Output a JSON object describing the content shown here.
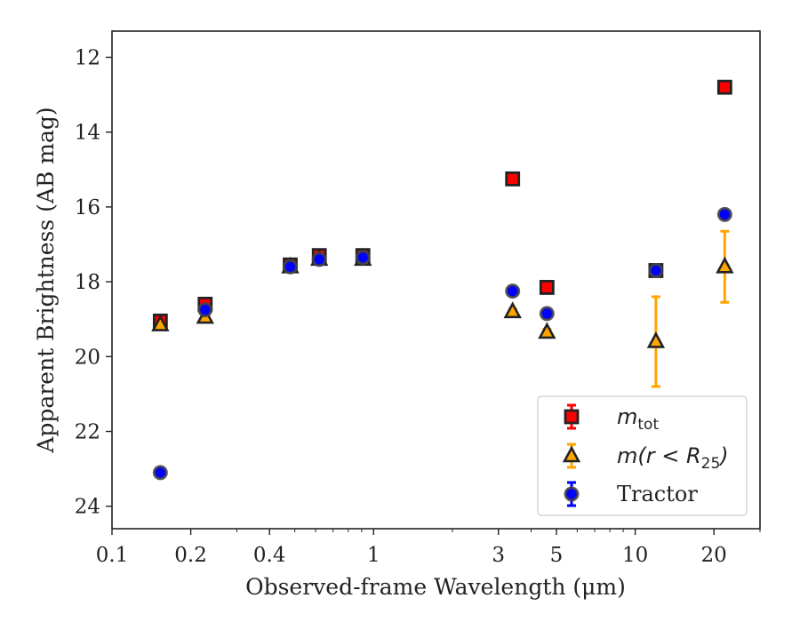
{
  "chart_data": {
    "type": "scatter",
    "xlabel": "Observed-frame Wavelength (μm)",
    "ylabel": "Apparent Brightness (AB mag)",
    "x_scale": "log",
    "xlim": [
      0.1,
      30
    ],
    "ylim": [
      24.6,
      11.3
    ],
    "y_inverted": true,
    "x_ticks": [
      0.1,
      0.2,
      0.4,
      1,
      3,
      5,
      10,
      20
    ],
    "x_tick_labels": [
      "0.1",
      "0.2",
      "0.4",
      "1",
      "3",
      "5",
      "10",
      "20"
    ],
    "y_ticks": [
      12,
      14,
      16,
      18,
      20,
      22,
      24
    ],
    "y_tick_labels": [
      "12",
      "14",
      "16",
      "18",
      "20",
      "22",
      "24"
    ],
    "legend_position": "lower-right",
    "series": [
      {
        "legend_math": "m",
        "legend_sub": "tot",
        "marker": "square",
        "color": "#ff0000",
        "edge": "#222222",
        "error_color": "#ff0000",
        "x": [
          0.153,
          0.227,
          0.48,
          0.62,
          0.91,
          3.4,
          4.6,
          12.0,
          22.0
        ],
        "y": [
          19.05,
          18.6,
          17.55,
          17.3,
          17.3,
          15.25,
          18.15,
          17.7,
          12.8
        ],
        "yerr": [
          0.06,
          0.06,
          0.05,
          0.05,
          0.05,
          0.05,
          0.06,
          0.08,
          0.08
        ]
      },
      {
        "legend_math": "m(r < R",
        "legend_sub": "25",
        "legend_close": ")",
        "marker": "triangle",
        "color": "#ffa500",
        "edge": "#222222",
        "error_color": "#ffa500",
        "x": [
          0.153,
          0.227,
          0.48,
          0.62,
          0.91,
          3.4,
          4.6,
          12.0,
          22.0
        ],
        "y": [
          19.15,
          18.95,
          17.6,
          17.4,
          17.4,
          18.8,
          19.35,
          19.6,
          17.6
        ],
        "yerr": [
          0.06,
          0.06,
          0.05,
          0.05,
          0.05,
          0.07,
          0.08,
          1.2,
          0.95
        ]
      },
      {
        "name": "Tractor",
        "marker": "circle",
        "color": "#0000ff",
        "edge": "#444444",
        "error_color": "#0000ff",
        "x": [
          0.153,
          0.227,
          0.48,
          0.62,
          0.91,
          3.4,
          4.6,
          12.0,
          22.0
        ],
        "y": [
          23.1,
          18.75,
          17.6,
          17.4,
          17.35,
          18.25,
          18.85,
          17.7,
          16.2
        ],
        "yerr": [
          0.05,
          0.05,
          0.04,
          0.04,
          0.04,
          0.04,
          0.05,
          0.06,
          0.06
        ]
      }
    ]
  }
}
